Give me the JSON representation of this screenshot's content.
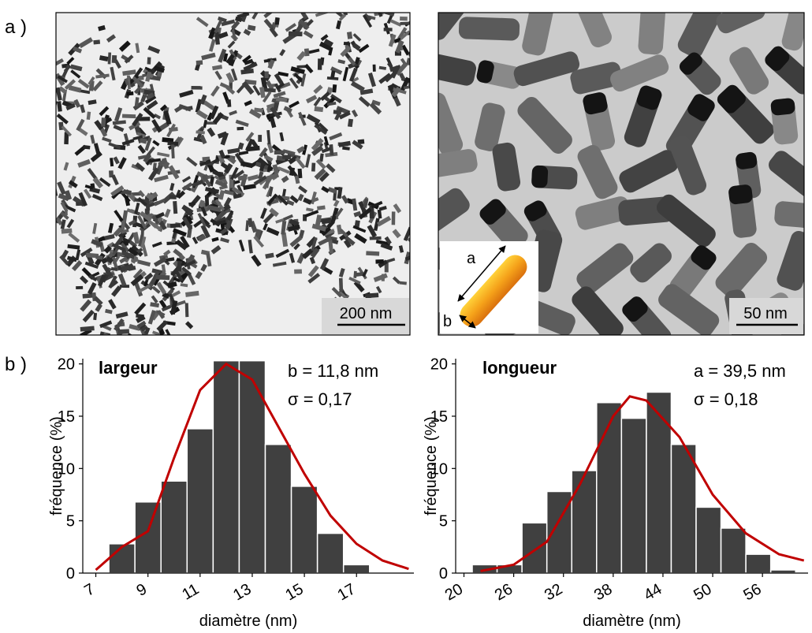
{
  "panel_labels": [
    "a )",
    "b )"
  ],
  "images": [
    {
      "scale_bar": "200 nm"
    },
    {
      "scale_bar": "50 nm",
      "inset": {
        "a": "a",
        "b": "b"
      }
    }
  ],
  "chart_data": [
    {
      "type": "histogram",
      "title": "largeur",
      "annotations": [
        "b = 11,8 nm",
        "σ = 0,17"
      ],
      "xlabel": "diamètre (nm)",
      "ylabel": "fréquence (%)",
      "bins": [
        7.5,
        8.5,
        9.5,
        10.5,
        11.5,
        12.5,
        13.5,
        14.5,
        15.5,
        16.5,
        17.5
      ],
      "values": [
        2.8,
        6.8,
        8.8,
        13.8,
        20.3,
        20.3,
        12.3,
        8.3,
        3.8,
        0.8
      ],
      "color": "#404040",
      "fit": {
        "x": [
          7,
          8,
          9,
          10,
          11,
          12,
          13,
          14,
          15,
          16,
          17,
          18,
          19
        ],
        "values": [
          0.3,
          2.5,
          4,
          11,
          17.5,
          20,
          18.5,
          14,
          9.5,
          5.5,
          2.8,
          1.2,
          0.4
        ],
        "color": "#c00000"
      },
      "xlim": [
        6.5,
        19.2
      ],
      "ylim": [
        0,
        20.5
      ],
      "xticks": [
        7,
        9,
        11,
        13,
        15,
        17
      ],
      "yticks": [
        0,
        5,
        10,
        15,
        20
      ]
    },
    {
      "type": "histogram",
      "title": "longueur",
      "annotations": [
        "a = 39,5 nm",
        "σ = 0,18"
      ],
      "xlabel": "diamètre (nm)",
      "ylabel": "fréquence (%)",
      "bins": [
        21,
        24,
        27,
        30,
        33,
        36,
        39,
        42,
        45,
        48,
        51,
        54,
        57,
        60
      ],
      "values": [
        0.8,
        0.8,
        4.8,
        7.8,
        9.8,
        16.3,
        14.8,
        17.3,
        12.3,
        6.3,
        4.3,
        1.8,
        0.3
      ],
      "color": "#404040",
      "fit": {
        "x": [
          22,
          26,
          30,
          34,
          38,
          40,
          42,
          46,
          50,
          54,
          58,
          61
        ],
        "values": [
          0.2,
          0.8,
          3,
          8.5,
          15,
          16.9,
          16.5,
          13,
          7.5,
          3.8,
          1.8,
          1.2
        ],
        "color": "#c00000"
      },
      "xlim": [
        19,
        61.5
      ],
      "ylim": [
        0,
        20.5
      ],
      "xticks": [
        20,
        26,
        32,
        38,
        44,
        50,
        56
      ],
      "yticks": [
        0,
        5,
        10,
        15,
        20
      ]
    }
  ]
}
